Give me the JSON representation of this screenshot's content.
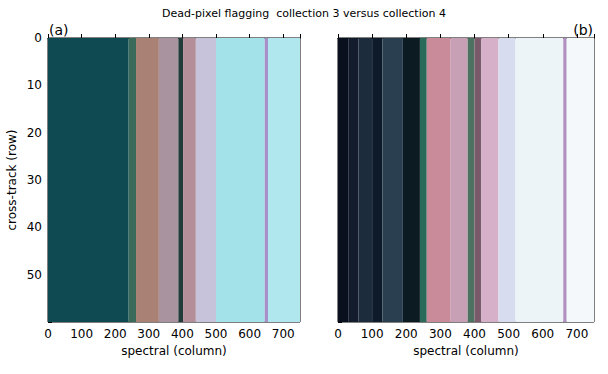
{
  "chart_data": {
    "type": "heatmap",
    "title": "Dead-pixel flagging  collection 3 versus collection 4",
    "grid": false,
    "panels": [
      {
        "label": "(a)",
        "xlabel": "spectral (column)",
        "ylabel": "cross-track (row)",
        "xlim": [
          0,
          750
        ],
        "ylim": [
          0,
          60
        ],
        "xticks": [
          0,
          100,
          200,
          300,
          400,
          500,
          600,
          700
        ],
        "yticks": [
          0,
          10,
          20,
          30,
          40,
          50
        ],
        "tick_labels": true,
        "cells": [
          {
            "x": [
              0,
              240
            ],
            "y": [
              0,
              60
            ],
            "color": "#0f4a52"
          },
          {
            "x": [
              240,
              262
            ],
            "y": [
              0,
              60
            ],
            "color": "#3a6a5a"
          },
          {
            "x": [
              262,
              330
            ],
            "y": [
              0,
              60
            ],
            "color": "#a98275"
          },
          {
            "x": [
              330,
              388
            ],
            "y": [
              0,
              60
            ],
            "color": "#a8939f"
          },
          {
            "x": [
              388,
              402
            ],
            "y": [
              0,
              60
            ],
            "color": "#223c3c"
          },
          {
            "x": [
              402,
              440
            ],
            "y": [
              0,
              60
            ],
            "color": "#b48e98"
          },
          {
            "x": [
              440,
              500
            ],
            "y": [
              0,
              60
            ],
            "color": "#c6c3da"
          },
          {
            "x": [
              500,
              645
            ],
            "y": [
              0,
              60
            ],
            "color": "#a4e2ea"
          },
          {
            "x": [
              645,
              655
            ],
            "y": [
              0,
              60
            ],
            "color": "#a590c8"
          },
          {
            "x": [
              655,
              750
            ],
            "y": [
              0,
              60
            ],
            "color": "#b0e6ee"
          }
        ]
      },
      {
        "label": "(b)",
        "xlabel": "spectral (column)",
        "xlim": [
          0,
          750
        ],
        "ylim": [
          0,
          60
        ],
        "xticks": [
          0,
          100,
          200,
          300,
          400,
          500,
          600,
          700
        ],
        "yticks": [
          0,
          10,
          20,
          30,
          40,
          50
        ],
        "tick_labels": "x",
        "cells": [
          {
            "x": [
              0,
              30
            ],
            "y": [
              0,
              60
            ],
            "color": "#0a0f1e"
          },
          {
            "x": [
              30,
              60
            ],
            "y": [
              0,
              60
            ],
            "color": "#121c2c"
          },
          {
            "x": [
              60,
              100
            ],
            "y": [
              0,
              60
            ],
            "color": "#1c2c3c"
          },
          {
            "x": [
              100,
              130
            ],
            "y": [
              0,
              60
            ],
            "color": "#0e1a2a"
          },
          {
            "x": [
              130,
              190
            ],
            "y": [
              0,
              60
            ],
            "color": "#2a4050"
          },
          {
            "x": [
              190,
              240
            ],
            "y": [
              0,
              60
            ],
            "color": "#0c1a22"
          },
          {
            "x": [
              240,
              260
            ],
            "y": [
              0,
              60
            ],
            "color": "#2a6a5a"
          },
          {
            "x": [
              260,
              330
            ],
            "y": [
              0,
              60
            ],
            "color": "#c98a9a"
          },
          {
            "x": [
              330,
              380
            ],
            "y": [
              0,
              60
            ],
            "color": "#c7a0b5"
          },
          {
            "x": [
              380,
              400
            ],
            "y": [
              0,
              60
            ],
            "color": "#4e7262"
          },
          {
            "x": [
              400,
              420
            ],
            "y": [
              0,
              60
            ],
            "color": "#7a5a6a"
          },
          {
            "x": [
              420,
              470
            ],
            "y": [
              0,
              60
            ],
            "color": "#d6b0c8"
          },
          {
            "x": [
              470,
              520
            ],
            "y": [
              0,
              60
            ],
            "color": "#d8dcef"
          },
          {
            "x": [
              520,
              660
            ],
            "y": [
              0,
              60
            ],
            "color": "#edf4f8"
          },
          {
            "x": [
              660,
              670
            ],
            "y": [
              0,
              60
            ],
            "color": "#b090c0"
          },
          {
            "x": [
              670,
              750
            ],
            "y": [
              0,
              60
            ],
            "color": "#f4f8fb"
          }
        ]
      }
    ]
  }
}
